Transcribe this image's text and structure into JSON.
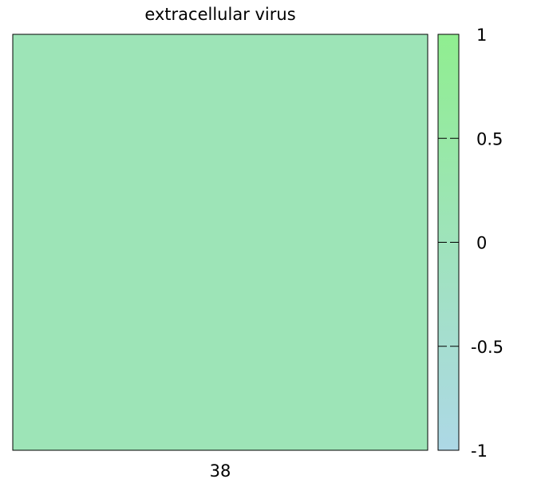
{
  "chart_data": {
    "type": "heatmap",
    "title": "extracellular virus",
    "xlabel": "",
    "ylabel": "",
    "x_categories": [
      "38"
    ],
    "y_categories": [
      ""
    ],
    "values": [
      [
        0.1
      ]
    ],
    "colorbar": {
      "min": -1,
      "max": 1,
      "ticks": [
        -1,
        -0.5,
        0,
        0.5,
        1
      ],
      "tick_labels": [
        "-1",
        "-0.5",
        "0",
        "0.5",
        "1"
      ],
      "color_low": "#add8e6",
      "color_high": "#90ee90"
    },
    "legend": "right"
  }
}
